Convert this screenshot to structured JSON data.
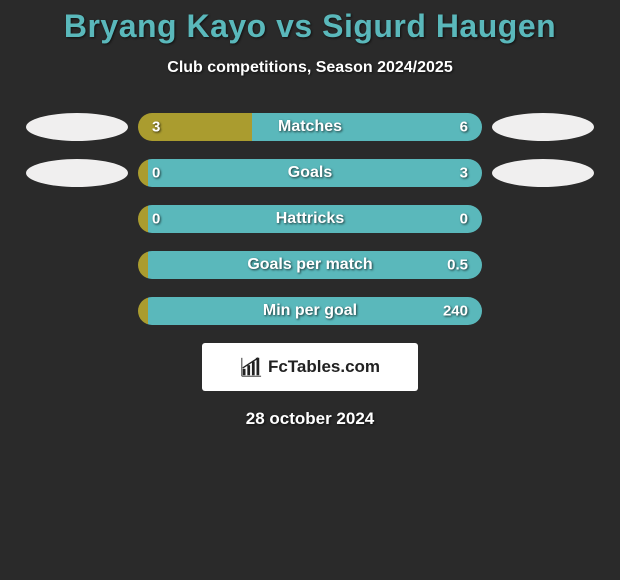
{
  "title": "Bryang Kayo vs Sigurd Haugen",
  "subtitle": "Club competitions, Season 2024/2025",
  "colors": {
    "left_fill": "#aa9c2f",
    "right_fill": "#5ab8bb",
    "badge_left": "#f0efef",
    "badge_right": "#f0efef",
    "title_color": "#5ab8bb",
    "background": "#2a2a2a"
  },
  "rows": [
    {
      "label": "Matches",
      "left_value": "3",
      "right_value": "6",
      "left_pct": 33,
      "right_pct": 67,
      "show_badges": true
    },
    {
      "label": "Goals",
      "left_value": "0",
      "right_value": "3",
      "left_pct": 3,
      "right_pct": 97,
      "show_badges": true
    },
    {
      "label": "Hattricks",
      "left_value": "0",
      "right_value": "0",
      "left_pct": 3,
      "right_pct": 97,
      "show_badges": false
    },
    {
      "label": "Goals per match",
      "left_value": "",
      "right_value": "0.5",
      "left_pct": 3,
      "right_pct": 97,
      "show_badges": false
    },
    {
      "label": "Min per goal",
      "left_value": "",
      "right_value": "240",
      "left_pct": 3,
      "right_pct": 97,
      "show_badges": false
    }
  ],
  "logo_text": "FcTables.com",
  "date": "28 october 2024"
}
